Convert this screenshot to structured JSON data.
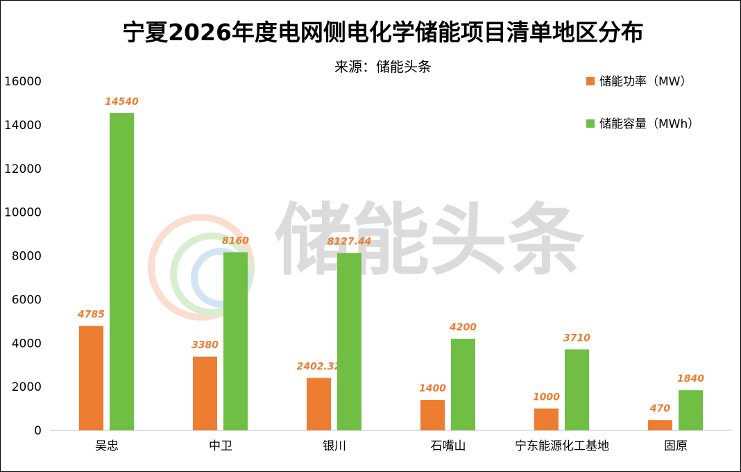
{
  "chart_data": {
    "type": "bar",
    "title": "宁夏2026年度电网侧电化学储能项目清单地区分布",
    "subtitle": "来源：储能头条",
    "watermark": "储能头条",
    "categories": [
      "吴忠",
      "中卫",
      "银川",
      "石嘴山",
      "宁东能源化工基地",
      "固原"
    ],
    "series": [
      {
        "name": "储能功率（MW）",
        "color": "#ED7D31",
        "values": [
          4785,
          3380,
          2402.32,
          1400,
          1000,
          470
        ],
        "labels": [
          "4785",
          "3380",
          "2402.32",
          "1400",
          "1000",
          "470"
        ]
      },
      {
        "name": "储能容量（MWh）",
        "color": "#70BE44",
        "values": [
          14540,
          8160,
          8127.44,
          4200,
          3710,
          1840
        ],
        "labels": [
          "14540",
          "8160",
          "8127.44",
          "4200",
          "3710",
          "1840"
        ]
      }
    ],
    "ylim": [
      0,
      16000
    ],
    "yticks": [
      "0",
      "2000",
      "4000",
      "6000",
      "8000",
      "10000",
      "12000",
      "14000",
      "16000"
    ],
    "xlabel": "",
    "ylabel": "",
    "grid": false,
    "legend_position": "top-right"
  }
}
